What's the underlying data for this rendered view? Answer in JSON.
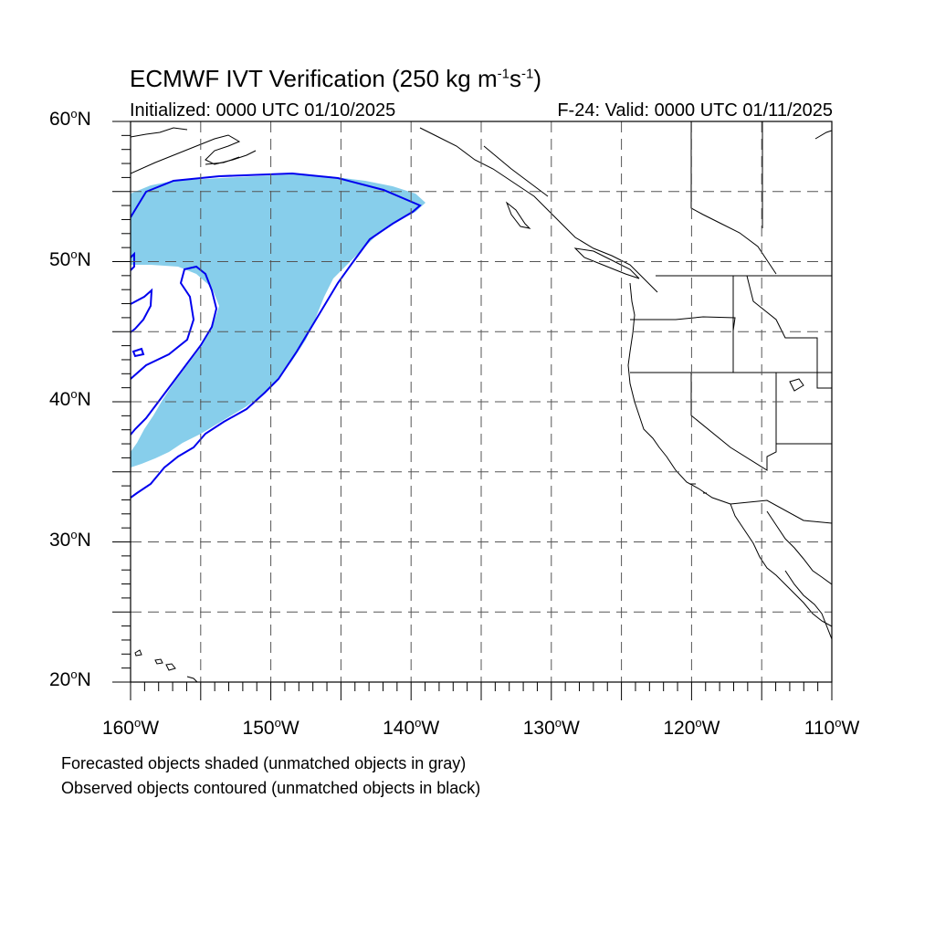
{
  "title": {
    "main": "ECMWF IVT Verification (250 kg m",
    "exp1": "-1",
    "mid": "s",
    "exp2": "-1",
    "close": ")"
  },
  "subtitle": {
    "initialized": "Initialized: 0000 UTC 01/10/2025",
    "valid": "F-24: Valid: 0000 UTC 01/11/2025"
  },
  "axes": {
    "lat_labels": [
      {
        "value": 60,
        "text": "60",
        "hemi": "N"
      },
      {
        "value": 50,
        "text": "50",
        "hemi": "N"
      },
      {
        "value": 40,
        "text": "40",
        "hemi": "N"
      },
      {
        "value": 30,
        "text": "30",
        "hemi": "N"
      },
      {
        "value": 20,
        "text": "20",
        "hemi": "N"
      }
    ],
    "lon_labels": [
      {
        "value": -160,
        "text": "160",
        "hemi": "W"
      },
      {
        "value": -150,
        "text": "150",
        "hemi": "W"
      },
      {
        "value": -140,
        "text": "140",
        "hemi": "W"
      },
      {
        "value": -130,
        "text": "130",
        "hemi": "W"
      },
      {
        "value": -120,
        "text": "120",
        "hemi": "W"
      },
      {
        "value": -110,
        "text": "110",
        "hemi": "W"
      }
    ],
    "lat_range": [
      20,
      60
    ],
    "lon_range": [
      -160,
      -110
    ],
    "grid": "dashed every 5 degrees"
  },
  "colors": {
    "forecast_fill": "#87ceeb",
    "observed_contour": "#0000ee",
    "coastline": "#000000",
    "grid": "#555555"
  },
  "captions": [
    "Forecasted objects shaded (unmatched objects in gray)",
    "Observed objects contoured (unmatched objects in black)"
  ]
}
